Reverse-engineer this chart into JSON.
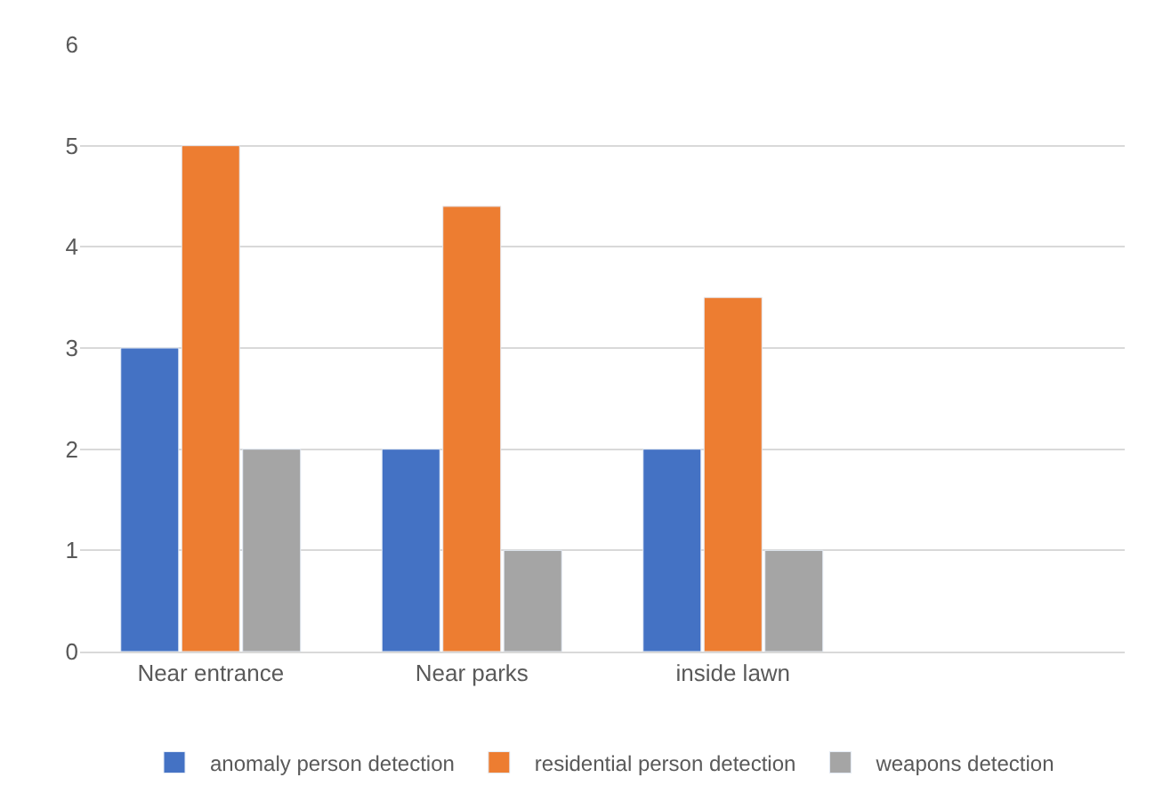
{
  "chart_data": {
    "type": "bar",
    "categories": [
      "Near entrance",
      "Near parks",
      "inside lawn",
      null
    ],
    "series": [
      {
        "name": "anomaly person detection",
        "color": "#4472c4",
        "values": [
          3,
          2,
          2,
          null
        ]
      },
      {
        "name": "residential person detection",
        "color": "#ed7d31",
        "values": [
          5,
          4.4,
          3.5,
          null
        ]
      },
      {
        "name": "weapons detection",
        "color": "#a5a5a5",
        "values": [
          2,
          1,
          1,
          null
        ]
      }
    ],
    "ylim": [
      0,
      6
    ],
    "yticks": [
      0,
      1,
      2,
      3,
      4,
      5,
      6
    ],
    "grid": "y",
    "legend": "bottom"
  }
}
